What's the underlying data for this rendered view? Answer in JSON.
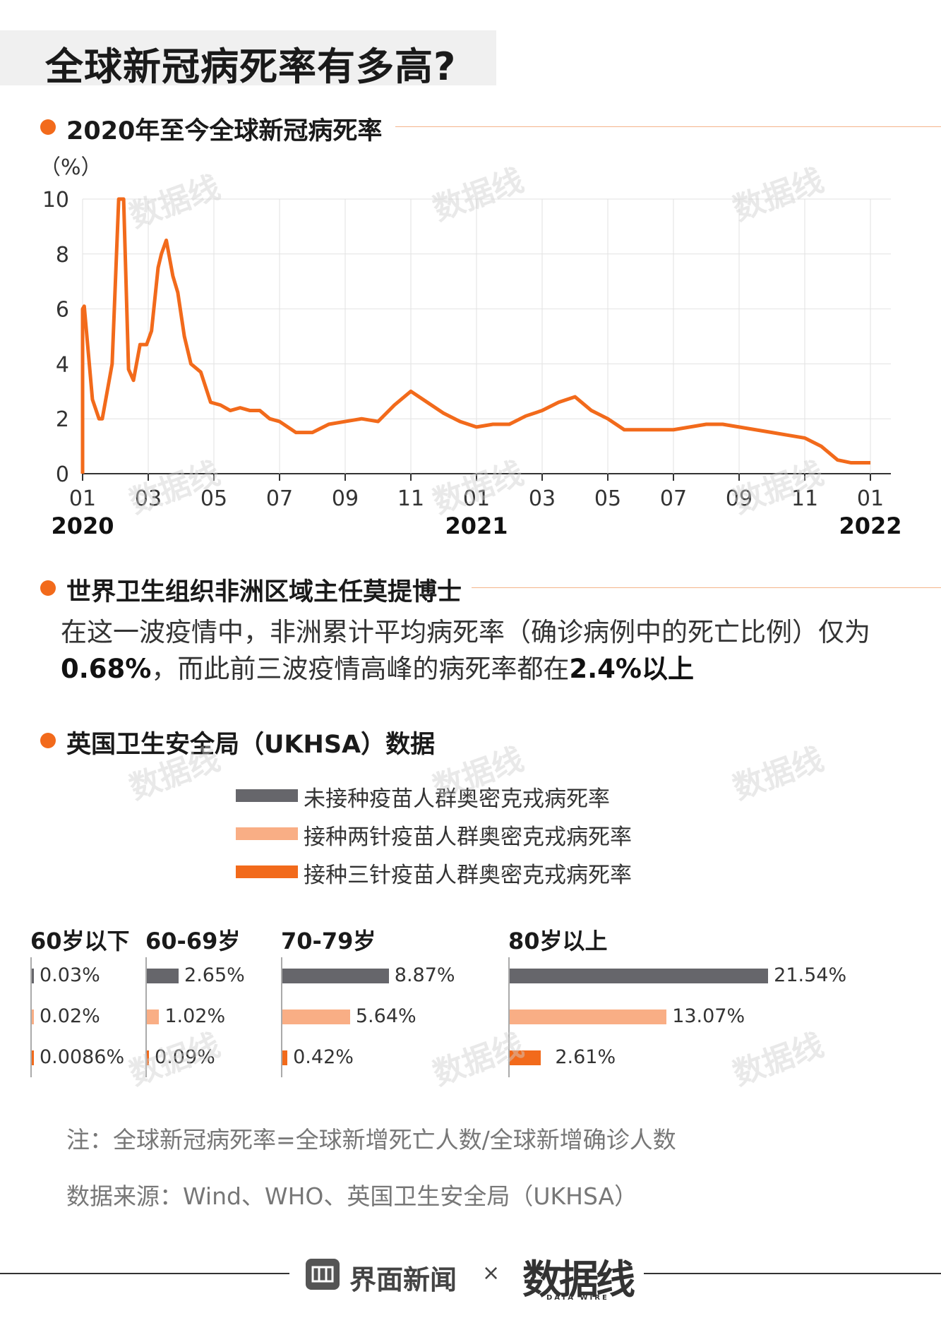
{
  "title": "全球新冠病死率有多高?",
  "section1": {
    "title": "2020年至今全球新冠病死率"
  },
  "section2": {
    "title": "世界卫生组织非洲区域主任莫提博士",
    "line1": "在这一波疫情中，非洲累计平均病死率（确诊病例中的死亡比例）仅为",
    "line2_bold1": "0.68%",
    "line2_mid": "，而此前三波疫情高峰的病死率都在",
    "line2_bold2": "2.4%以上"
  },
  "section3": {
    "title": "英国卫生安全局（UKHSA）数据"
  },
  "colors": {
    "accent": "#f26a1b",
    "unvaccinated": "#66666b",
    "two_doses": "#f9ae85",
    "three_doses": "#f26a1b"
  },
  "watermark": "数据线",
  "chart_data": [
    {
      "type": "line",
      "title": "2020年至今全球新冠病死率",
      "ylabel": "（%）",
      "ylim": [
        0,
        10
      ],
      "yticks": [
        "0",
        "2",
        "4",
        "6",
        "8",
        "10"
      ],
      "xticks": [
        "01",
        "03",
        "05",
        "07",
        "09",
        "11",
        "01",
        "03",
        "05",
        "07",
        "09",
        "11",
        "01"
      ],
      "year_labels": [
        "2020",
        "2021",
        "2022"
      ],
      "grid": true,
      "series": [
        {
          "name": "全球新冠病死率",
          "x": [
            0,
            0.05,
            0.3,
            0.5,
            0.6,
            0.9,
            1.1,
            1.25,
            1.4,
            1.55,
            1.75,
            1.95,
            2.1,
            2.3,
            2.4,
            2.55,
            2.75,
            2.9,
            3.1,
            3.3,
            3.6,
            3.9,
            4.2,
            4.5,
            4.8,
            5.1,
            5.4,
            5.7,
            6.0,
            6.5,
            7.0,
            7.5,
            8.0,
            8.5,
            9.0,
            9.5,
            10.0,
            10.5,
            11.0,
            11.5,
            12.0,
            12.5,
            13.0,
            13.5,
            14.0,
            14.5,
            15.0,
            15.5,
            16.0,
            16.5,
            17.0,
            17.3,
            17.6,
            18.0,
            18.5,
            19.0,
            19.5,
            20.0,
            20.5,
            21.0,
            21.5,
            22.0,
            22.5,
            23.0,
            23.4,
            23.8,
            24.0
          ],
          "values": [
            6.0,
            6.1,
            2.7,
            2.0,
            2.0,
            4.0,
            10.0,
            10.0,
            3.8,
            3.4,
            4.7,
            4.7,
            5.2,
            7.5,
            8.0,
            8.5,
            7.2,
            6.6,
            5.0,
            4.0,
            3.7,
            2.6,
            2.5,
            2.3,
            2.4,
            2.3,
            2.3,
            2.0,
            1.9,
            1.5,
            1.5,
            1.8,
            1.9,
            2.0,
            1.9,
            2.5,
            3.0,
            2.6,
            2.2,
            1.9,
            1.7,
            1.8,
            1.8,
            2.1,
            2.3,
            2.6,
            2.8,
            2.3,
            2.0,
            1.6,
            1.6,
            1.6,
            1.6,
            1.6,
            1.7,
            1.8,
            1.8,
            1.7,
            1.6,
            1.5,
            1.4,
            1.3,
            1.0,
            0.5,
            0.4,
            0.4,
            0.4
          ]
        }
      ]
    },
    {
      "type": "bar",
      "title": "英国卫生安全局（UKHSA）数据",
      "legend": [
        "未接种疫苗人群奥密克戎病死率",
        "接种两针疫苗人群奥密克戎病死率",
        "接种三针疫苗人群奥密克戎病死率"
      ],
      "groups": [
        {
          "label": "60岁以下",
          "values": [
            0.03,
            0.02,
            0.0086
          ],
          "labels": [
            "0.03%",
            "0.02%",
            "0.0086%"
          ]
        },
        {
          "label": "60-69岁",
          "values": [
            2.65,
            1.02,
            0.09
          ],
          "labels": [
            "2.65%",
            "1.02%",
            "0.09%"
          ]
        },
        {
          "label": "70-79岁",
          "values": [
            8.87,
            5.64,
            0.42
          ],
          "labels": [
            "8.87%",
            "5.64%",
            "0.42%"
          ]
        },
        {
          "label": "80岁以上",
          "values": [
            21.54,
            13.07,
            2.61
          ],
          "labels": [
            "21.54%",
            "13.07%",
            "2.61%"
          ]
        }
      ]
    }
  ],
  "notes": {
    "formula": "注：全球新冠病死率=全球新增死亡人数/全球新增确诊人数",
    "source": "数据来源：Wind、WHO、英国卫生安全局（UKHSA）"
  },
  "footer": {
    "brand": "界面新闻",
    "times": "×",
    "partner": "数据线",
    "partner_sub": "DATA WIRE"
  }
}
